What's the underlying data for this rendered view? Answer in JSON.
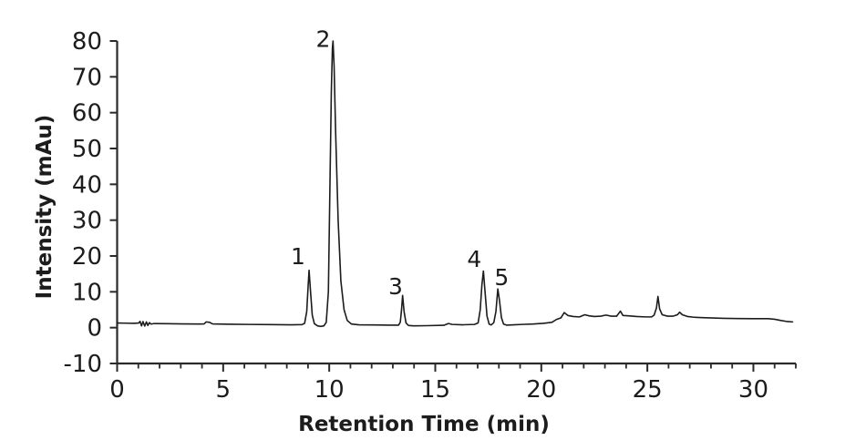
{
  "figure": {
    "background": "#ffffff",
    "axis_color": "#2a2a2a",
    "text_color": "#1c1c1c"
  },
  "chart_data": {
    "type": "line",
    "title": "",
    "xlabel": "Retention Time (min)",
    "ylabel": "Intensity (mAu)",
    "xlim": [
      0,
      32
    ],
    "ylim": [
      -10,
      80
    ],
    "x_major_ticks": [
      0,
      5,
      10,
      15,
      20,
      25,
      30
    ],
    "x_minor_tick_step": 1,
    "y_ticks": [
      -10,
      0,
      10,
      20,
      30,
      40,
      50,
      60,
      70,
      80
    ],
    "grid": false,
    "legend": null,
    "line_color": "#1c1c1c",
    "peaks": [
      {
        "label": "1",
        "retention_time_min": 9.05,
        "intensity_mau": 16.0,
        "label_anchor": {
          "x": 8.53,
          "y": 20.0
        }
      },
      {
        "label": "2",
        "retention_time_min": 10.18,
        "intensity_mau": 80.0,
        "label_anchor": {
          "x": 9.71,
          "y": 80.6
        }
      },
      {
        "label": "3",
        "retention_time_min": 13.46,
        "intensity_mau": 9.0,
        "label_anchor": {
          "x": 13.13,
          "y": 11.6
        }
      },
      {
        "label": "4",
        "retention_time_min": 17.27,
        "intensity_mau": 15.8,
        "label_anchor": {
          "x": 16.84,
          "y": 19.2
        }
      },
      {
        "label": "5",
        "retention_time_min": 17.95,
        "intensity_mau": 10.8,
        "label_anchor": {
          "x": 18.13,
          "y": 14.2
        }
      }
    ],
    "series": [
      {
        "name": "signal",
        "points": [
          [
            0,
            1.3
          ],
          [
            0.4,
            1.25
          ],
          [
            0.8,
            1.2
          ],
          [
            1.02,
            1.3
          ],
          [
            1.08,
            1.75
          ],
          [
            1.15,
            0.5
          ],
          [
            1.22,
            1.7
          ],
          [
            1.3,
            0.45
          ],
          [
            1.38,
            1.6
          ],
          [
            1.45,
            0.6
          ],
          [
            1.52,
            1.4
          ],
          [
            1.6,
            1.0
          ],
          [
            1.75,
            1.15
          ],
          [
            2.3,
            1.1
          ],
          [
            3.1,
            1.05
          ],
          [
            3.9,
            1.0
          ],
          [
            4.1,
            1.05
          ],
          [
            4.2,
            1.6
          ],
          [
            4.35,
            1.5
          ],
          [
            4.5,
            1.05
          ],
          [
            5.3,
            0.95
          ],
          [
            6.2,
            0.9
          ],
          [
            7.2,
            0.85
          ],
          [
            8.2,
            0.8
          ],
          [
            8.72,
            0.85
          ],
          [
            8.84,
            1.2
          ],
          [
            8.94,
            4.5
          ],
          [
            9.0,
            11
          ],
          [
            9.05,
            16
          ],
          [
            9.12,
            10
          ],
          [
            9.2,
            3.5
          ],
          [
            9.3,
            1.1
          ],
          [
            9.45,
            0.5
          ],
          [
            9.6,
            0.35
          ],
          [
            9.75,
            0.5
          ],
          [
            9.86,
            1.5
          ],
          [
            9.96,
            10
          ],
          [
            10.04,
            42
          ],
          [
            10.1,
            66
          ],
          [
            10.15,
            78
          ],
          [
            10.18,
            80
          ],
          [
            10.23,
            73
          ],
          [
            10.3,
            55
          ],
          [
            10.42,
            30
          ],
          [
            10.55,
            13
          ],
          [
            10.7,
            5
          ],
          [
            10.85,
            2
          ],
          [
            11.05,
            1.0
          ],
          [
            11.4,
            0.8
          ],
          [
            12.1,
            0.75
          ],
          [
            12.9,
            0.7
          ],
          [
            13.27,
            0.7
          ],
          [
            13.35,
            1.5
          ],
          [
            13.41,
            5
          ],
          [
            13.46,
            9
          ],
          [
            13.53,
            4.5
          ],
          [
            13.62,
            1.3
          ],
          [
            13.74,
            0.6
          ],
          [
            14.0,
            0.5
          ],
          [
            14.6,
            0.55
          ],
          [
            15.4,
            0.65
          ],
          [
            15.62,
            1.15
          ],
          [
            15.8,
            0.9
          ],
          [
            16.3,
            0.8
          ],
          [
            16.85,
            0.9
          ],
          [
            17.02,
            1.3
          ],
          [
            17.12,
            5
          ],
          [
            17.2,
            12
          ],
          [
            17.27,
            15.8
          ],
          [
            17.34,
            10.5
          ],
          [
            17.44,
            3.2
          ],
          [
            17.54,
            1.0
          ],
          [
            17.64,
            0.75
          ],
          [
            17.76,
            1.4
          ],
          [
            17.86,
            4.5
          ],
          [
            17.95,
            10.8
          ],
          [
            18.03,
            7.5
          ],
          [
            18.12,
            2.8
          ],
          [
            18.22,
            1.0
          ],
          [
            18.36,
            0.7
          ],
          [
            18.7,
            0.8
          ],
          [
            19.1,
            0.9
          ],
          [
            19.6,
            1.0
          ],
          [
            20.1,
            1.2
          ],
          [
            20.5,
            1.5
          ],
          [
            20.72,
            2.3
          ],
          [
            20.92,
            2.7
          ],
          [
            21.08,
            4.2
          ],
          [
            21.25,
            3.4
          ],
          [
            21.5,
            3.1
          ],
          [
            21.8,
            3.0
          ],
          [
            22.05,
            3.6
          ],
          [
            22.25,
            3.3
          ],
          [
            22.5,
            3.1
          ],
          [
            22.8,
            3.2
          ],
          [
            23.05,
            3.5
          ],
          [
            23.3,
            3.2
          ],
          [
            23.55,
            3.2
          ],
          [
            23.73,
            4.6
          ],
          [
            23.85,
            3.4
          ],
          [
            24.1,
            3.3
          ],
          [
            24.5,
            3.1
          ],
          [
            24.9,
            3.0
          ],
          [
            25.2,
            3.0
          ],
          [
            25.32,
            3.5
          ],
          [
            25.43,
            5.5
          ],
          [
            25.5,
            8.7
          ],
          [
            25.58,
            5.2
          ],
          [
            25.7,
            3.6
          ],
          [
            25.95,
            3.2
          ],
          [
            26.2,
            3.2
          ],
          [
            26.42,
            3.6
          ],
          [
            26.52,
            4.3
          ],
          [
            26.65,
            3.6
          ],
          [
            26.9,
            3.1
          ],
          [
            27.2,
            2.9
          ],
          [
            27.6,
            2.8
          ],
          [
            28.1,
            2.7
          ],
          [
            28.6,
            2.6
          ],
          [
            29.3,
            2.55
          ],
          [
            30.0,
            2.5
          ],
          [
            30.7,
            2.5
          ],
          [
            31.0,
            2.35
          ],
          [
            31.3,
            2.0
          ],
          [
            31.6,
            1.7
          ],
          [
            31.85,
            1.6
          ]
        ]
      }
    ]
  }
}
